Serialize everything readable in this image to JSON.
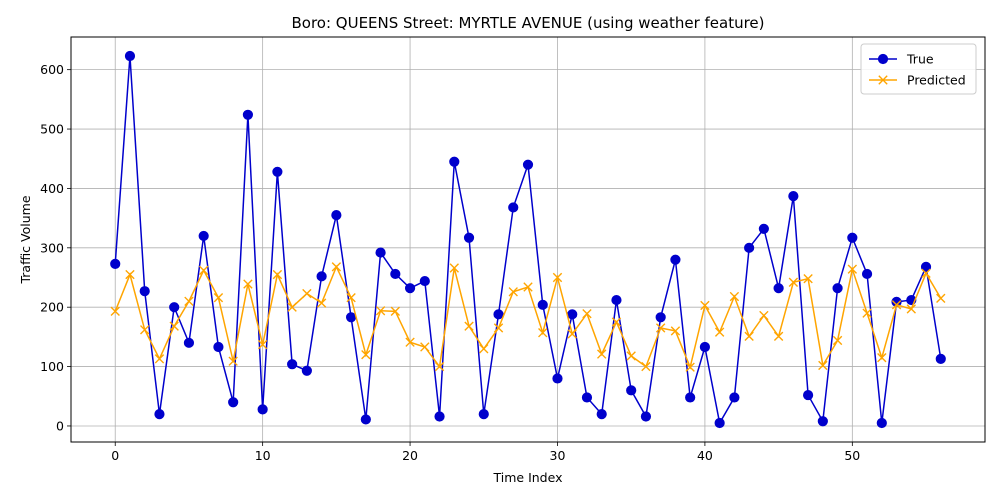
{
  "chart_data": {
    "type": "line",
    "title": "Boro: QUEENS Street: MYRTLE AVENUE (using weather feature)",
    "xlabel": "Time Index",
    "ylabel": "Traffic Volume",
    "xlim": [
      -3,
      59
    ],
    "ylim": [
      -27,
      655
    ],
    "xticks": [
      0,
      10,
      20,
      30,
      40,
      50
    ],
    "yticks": [
      0,
      100,
      200,
      300,
      400,
      500,
      600
    ],
    "grid": true,
    "legend_position": "top-right",
    "x": [
      0,
      1,
      2,
      3,
      4,
      5,
      6,
      7,
      8,
      9,
      10,
      11,
      12,
      13,
      14,
      15,
      16,
      17,
      18,
      19,
      20,
      21,
      22,
      23,
      24,
      25,
      26,
      27,
      28,
      29,
      30,
      31,
      32,
      33,
      34,
      35,
      36,
      37,
      38,
      39,
      40,
      41,
      42,
      43,
      44,
      45,
      46,
      47,
      48,
      49,
      50,
      51,
      52,
      53,
      54,
      55,
      56
    ],
    "series": [
      {
        "name": "True",
        "color": "#0000cc",
        "marker": "circle",
        "values": [
          273,
          623,
          227,
          20,
          200,
          140,
          320,
          133,
          40,
          524,
          28,
          428,
          104,
          93,
          252,
          355,
          183,
          11,
          292,
          256,
          232,
          244,
          16,
          445,
          317,
          20,
          188,
          368,
          440,
          204,
          80,
          188,
          48,
          20,
          212,
          60,
          16,
          183,
          280,
          48,
          133,
          5,
          48,
          300,
          332,
          232,
          387,
          52,
          8,
          232,
          317,
          256,
          5,
          209,
          212,
          268,
          113
        ]
      },
      {
        "name": "Predicted",
        "color": "#ffa500",
        "marker": "x",
        "values": [
          193,
          255,
          162,
          113,
          168,
          210,
          262,
          216,
          109,
          239,
          137,
          255,
          200,
          223,
          207,
          268,
          216,
          120,
          194,
          193,
          141,
          133,
          100,
          266,
          168,
          130,
          165,
          226,
          234,
          157,
          250,
          155,
          189,
          121,
          175,
          118,
          100,
          165,
          160,
          99,
          203,
          158,
          218,
          151,
          186,
          151,
          242,
          248,
          102,
          144,
          264,
          190,
          115,
          204,
          197,
          257,
          215
        ]
      }
    ]
  }
}
